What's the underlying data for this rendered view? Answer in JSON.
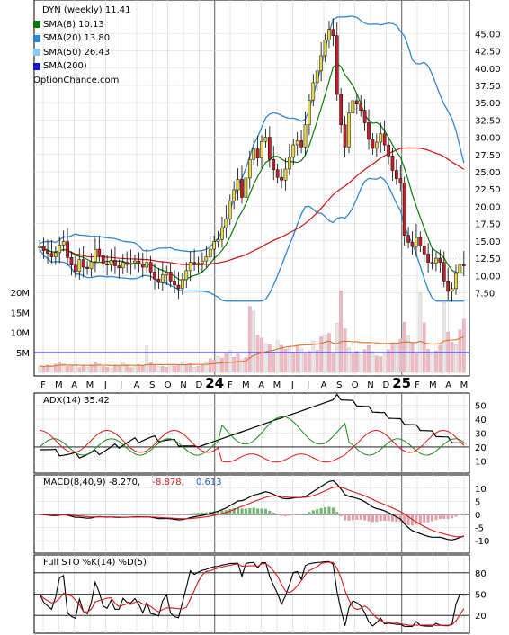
{
  "legend": {
    "title": "DYN (weekly) 11.41",
    "sma8": "SMA(8) 10.13",
    "sma20": "SMA(20) 13.80",
    "sma50": "SMA(50) 26.43",
    "sma200": "SMA(200)",
    "source": "OptionChance.com"
  },
  "colors": {
    "sma8": "#0a7a0a",
    "sma20": "#2f86d2",
    "sma50": "#8ec8ee",
    "sma200": "#1414c8",
    "up": "#e6d84a",
    "down": "#c81e2a",
    "volume": "#f2b8c0",
    "volume_avg": "#e07020",
    "adx": "#000000",
    "plus_di": "#1a8a1a",
    "minus_di": "#d81818",
    "macd": "#000000",
    "signal": "#d81818",
    "hist_pos": "#76b276",
    "hist_neg": "#e0a0a8"
  },
  "panels": {
    "adx": {
      "label": "ADX(14) 35.42"
    },
    "macd": {
      "label": "MACD(8,40,9) -8.270,",
      "value2": "-8.878,",
      "value3": "0.613"
    },
    "sto": {
      "label": "Full STO %K(14) %D(5)"
    }
  },
  "chart_data": [
    {
      "type": "candlestick",
      "title": "DYN (weekly) 11.41",
      "x_labels": [
        "F",
        "M",
        "A",
        "M",
        "J",
        "J",
        "A",
        "S",
        "O",
        "N",
        "D",
        "24",
        "F",
        "M",
        "A",
        "M",
        "J",
        "J",
        "A",
        "S",
        "O",
        "N",
        "D",
        "25",
        "F",
        "M",
        "A",
        "M"
      ],
      "y_ticks": [
        7.5,
        10,
        12.5,
        15,
        17.5,
        20,
        22.5,
        25,
        27.5,
        30,
        32.5,
        35,
        37.5,
        40,
        42.5,
        45
      ],
      "ylim": [
        6,
        47
      ],
      "close": [
        14.2,
        13.6,
        13.2,
        12.7,
        13.3,
        14.4,
        14.9,
        12.6,
        11.5,
        10.6,
        12.3,
        11.2,
        11.0,
        12.0,
        13.8,
        12.9,
        11.7,
        11.5,
        12.2,
        11.4,
        11.1,
        11.9,
        11.6,
        11.8,
        12.1,
        11.7,
        11.2,
        11.9,
        10.5,
        9.5,
        9.0,
        10.1,
        10.5,
        9.2,
        8.6,
        8.1,
        9.4,
        10.7,
        11.9,
        11.6,
        11.8,
        12.1,
        12.7,
        13.8,
        14.9,
        15.2,
        16.9,
        18.2,
        20.8,
        22.4,
        23.9,
        21.3,
        24.1,
        26.8,
        28.3,
        27.0,
        29.4,
        30.0,
        26.8,
        25.3,
        24.2,
        23.8,
        25.4,
        27.1,
        28.9,
        29.5,
        28.6,
        31.8,
        35.4,
        37.9,
        39.6,
        41.8,
        44.1,
        45.6,
        44.7,
        36.2,
        31.8,
        28.6,
        33.5,
        35.3,
        34.8,
        33.9,
        32.1,
        29.7,
        28.4,
        29.3,
        30.5,
        28.9,
        27.3,
        25.2,
        24.0,
        23.4,
        15.8,
        14.8,
        14.2,
        15.5,
        14.3,
        13.1,
        11.9,
        11.8,
        12.5,
        11.9,
        9.2,
        7.7,
        8.1,
        10.3,
        11.6,
        11.41
      ],
      "volume": {
        "yticks": [
          "20M",
          "15M",
          "10M",
          "5M"
        ],
        "values": [
          1.6,
          1.3,
          1.8,
          1.4,
          2.1,
          2.6,
          2.2,
          1.5,
          1.8,
          2.0,
          1.2,
          1.6,
          1.3,
          1.9,
          2.6,
          2.1,
          1.5,
          1.3,
          1.1,
          1.8,
          1.5,
          2.4,
          1.6,
          1.2,
          1.4,
          2.0,
          1.7,
          6.6,
          2.5,
          1.8,
          1.4,
          1.5,
          1.3,
          2.0,
          1.6,
          1.9,
          2.3,
          1.7,
          2.2,
          1.3,
          1.5,
          1.8,
          2.6,
          3.4,
          3.1,
          4.0,
          3.6,
          4.9,
          5.5,
          3.8,
          4.6,
          3.2,
          3.8,
          16.5,
          15.3,
          9.3,
          8.6,
          7.2,
          6.9,
          5.1,
          7.9,
          6.8,
          5.8,
          6.4,
          5.1,
          6.6,
          5.9,
          4.7,
          5.3,
          7.8,
          5.6,
          8.9,
          9.4,
          9.8,
          5.0,
          12.3,
          20.4,
          10.9,
          6.1,
          4.8,
          5.3,
          4.4,
          5.7,
          6.7,
          5.2,
          4.1,
          3.9,
          4.6,
          5.7,
          7.4,
          6.8,
          8.3,
          12.5,
          9.1,
          7.3,
          4.8,
          19.8,
          12.4,
          5.8,
          4.6,
          5.4,
          6.8,
          17.5,
          10.1,
          7.6,
          6.9,
          10.6,
          13.3
        ]
      },
      "sma200": 4.9,
      "adx": {
        "yticks": [
          50,
          40,
          30,
          20,
          10
        ]
      },
      "macd": {
        "yticks": [
          10,
          5,
          0,
          -5,
          -10
        ]
      },
      "sto": {
        "yticks": [
          80,
          50,
          20
        ]
      }
    }
  ]
}
